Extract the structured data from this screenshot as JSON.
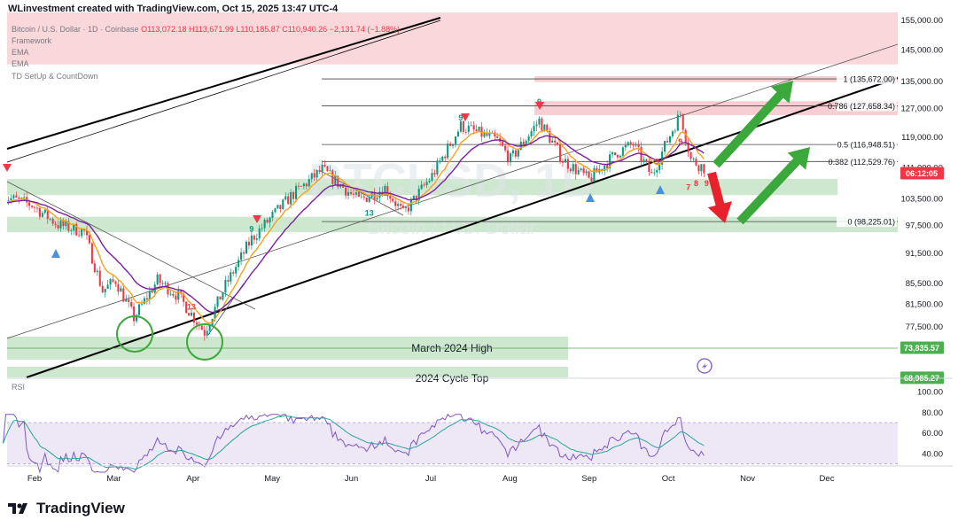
{
  "header": {
    "attribution": "WLinvestment created with TradingView.com, Oct 15, 2025 13:47 UTC-4"
  },
  "legend": {
    "symbol": "Bitcoin / U.S. Dollar · 1D · Coinbase",
    "ohlc": "O113,072.18 H113,671.99 L110,185.87 C110,940.26 −2,131.74 (−1.88%)",
    "indicators": [
      "Framework",
      "EMA",
      "EMA",
      "TD SetUp & CountDown"
    ]
  },
  "watermark": {
    "ticker": "BTCUSD, 1D",
    "name": "Bitcoin / U.S. Dollar"
  },
  "logo": {
    "text": "TradingView"
  },
  "colors": {
    "candle_up": "#089981",
    "candle_down": "#f23645",
    "ema_fast": "#f7a21b",
    "ema_slow": "#7b1fa2",
    "zone_red": "#f8c9cd",
    "zone_green": "#c8e6c9",
    "arrow_green": "#3aa83a",
    "arrow_red": "#e8222c",
    "rsi_line": "#7e57c2",
    "rsi_ma": "#26a69a",
    "rsi_band": "#ede7f6"
  },
  "chart_data": {
    "type": "candlestick",
    "x_ticks": [
      "Feb",
      "Mar",
      "Apr",
      "May",
      "Jun",
      "Jul",
      "Aug",
      "Sep",
      "Oct",
      "Nov",
      "Dec"
    ],
    "y_ticks": [
      155000,
      145000,
      135000,
      127000,
      119000,
      111000,
      103500,
      97500,
      91500,
      85500,
      81500,
      77500
    ],
    "y_tick_labels": [
      "155,000.00",
      "145,000.00",
      "135,000.00",
      "127,000.00",
      "119,000.00",
      "111,000.00",
      "103,500.00",
      "97,500.00",
      "91,500.00",
      "85,500.00",
      "81,500.00",
      "77,500.00"
    ],
    "y_scale": "log",
    "price_anchors": [
      {
        "date": "2025-01-20",
        "price": 104000
      },
      {
        "date": "2025-01-31",
        "price": 102000
      },
      {
        "date": "2025-02-10",
        "price": 97500
      },
      {
        "date": "2025-02-20",
        "price": 96000
      },
      {
        "date": "2025-02-27",
        "price": 84000
      },
      {
        "date": "2025-03-04",
        "price": 86000
      },
      {
        "date": "2025-03-11",
        "price": 79000
      },
      {
        "date": "2025-03-20",
        "price": 86000
      },
      {
        "date": "2025-03-28",
        "price": 83000
      },
      {
        "date": "2025-04-07",
        "price": 76500
      },
      {
        "date": "2025-04-15",
        "price": 85000
      },
      {
        "date": "2025-04-25",
        "price": 94500
      },
      {
        "date": "2025-05-10",
        "price": 104000
      },
      {
        "date": "2025-05-22",
        "price": 110500
      },
      {
        "date": "2025-06-05",
        "price": 103000
      },
      {
        "date": "2025-06-15",
        "price": 106000
      },
      {
        "date": "2025-06-22",
        "price": 100000
      },
      {
        "date": "2025-07-03",
        "price": 109000
      },
      {
        "date": "2025-07-14",
        "price": 122000
      },
      {
        "date": "2025-07-28",
        "price": 118000
      },
      {
        "date": "2025-08-02",
        "price": 113000
      },
      {
        "date": "2025-08-13",
        "price": 123500
      },
      {
        "date": "2025-08-22",
        "price": 113000
      },
      {
        "date": "2025-09-01",
        "price": 108000
      },
      {
        "date": "2025-09-12",
        "price": 115000
      },
      {
        "date": "2025-09-18",
        "price": 117000
      },
      {
        "date": "2025-09-25",
        "price": 109000
      },
      {
        "date": "2025-10-01",
        "price": 118000
      },
      {
        "date": "2025-10-06",
        "price": 125500
      },
      {
        "date": "2025-10-10",
        "price": 113000
      },
      {
        "date": "2025-10-15",
        "price": 110940
      }
    ],
    "fib_levels": [
      {
        "ratio": "1",
        "price": 135672.0,
        "label": "1 (135,672.00)"
      },
      {
        "ratio": "0.786",
        "price": 127658.34,
        "label": "0.786 (127,658.34)"
      },
      {
        "ratio": "0.5",
        "price": 116948.51,
        "label": "0.5 (116,948.51)"
      },
      {
        "ratio": "0.382",
        "price": 112529.76,
        "label": "0.382 (112,529.76)"
      },
      {
        "ratio": "0",
        "price": 98225.01,
        "label": "0 (98,225.01)"
      }
    ],
    "price_tags": [
      {
        "price": 109600,
        "label": "06:12:05",
        "color": "#f23645"
      },
      {
        "price": 73835.57,
        "label": "73,835.57",
        "color": "#4caf50"
      },
      {
        "price": 68985.27,
        "label": "68,985.27",
        "color": "#4caf50"
      }
    ],
    "annotations": [
      {
        "text": "March 2024 High",
        "price": 73835.57
      },
      {
        "text": "2024 Cycle Top",
        "price": 69000
      }
    ],
    "td_labels": [
      {
        "text": "13",
        "date": "2025-04-02",
        "price": 80500,
        "color": "#f23645"
      },
      {
        "text": "13",
        "date": "2025-06-09",
        "price": 99500,
        "color": "#089981"
      },
      {
        "text": "7",
        "date": "2025-10-09",
        "price": 105500,
        "color": "#f23645"
      },
      {
        "text": "8",
        "date": "2025-10-12",
        "price": 106500,
        "color": "#f23645"
      },
      {
        "text": "9",
        "date": "2025-10-16",
        "price": 106500,
        "color": "#f23645"
      },
      {
        "text": "9",
        "date": "2025-04-25",
        "price": 96000,
        "color": "#089981"
      },
      {
        "text": "9",
        "date": "2025-07-14",
        "price": 123500,
        "color": "#089981"
      },
      {
        "text": "9",
        "date": "2025-08-13",
        "price": 128000,
        "color": "#089981"
      },
      {
        "text": "9",
        "date": "2025-09-27",
        "price": 111800,
        "color": "#f23645"
      },
      {
        "text": "9",
        "date": "2025-10-06",
        "price": 117000,
        "color": "#f23645"
      }
    ],
    "rsi": {
      "label": "RSI",
      "y_ticks": [
        100,
        80,
        60,
        40
      ],
      "y_tick_labels": [
        "100.00",
        "80.00",
        "60.00",
        "40.00"
      ],
      "band": [
        30,
        70
      ]
    }
  }
}
